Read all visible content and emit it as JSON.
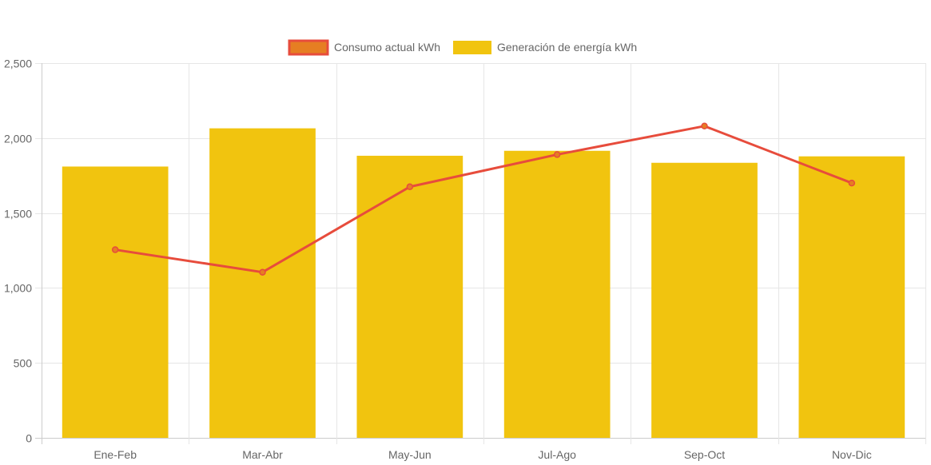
{
  "chart_data": {
    "type": "bar",
    "categories": [
      "Ene-Feb",
      "Mar-Abr",
      "May-Jun",
      "Jul-Ago",
      "Sep-Oct",
      "Nov-Dic"
    ],
    "series": [
      {
        "name": "Consumo actual kWh",
        "type": "line",
        "values": [
          1255,
          1105,
          1675,
          1890,
          2080,
          1700
        ],
        "color": "#e74c3c",
        "fill": "#e67e22"
      },
      {
        "name": "Generación de energía kWh",
        "type": "bar",
        "values": [
          1810,
          2065,
          1882,
          1915,
          1835,
          1878
        ],
        "color": "#f1c40f"
      }
    ],
    "y_ticks": [
      "0",
      "500",
      "1,000",
      "1,500",
      "2,000",
      "2,500"
    ],
    "ylim": [
      0,
      2500
    ],
    "grid": true,
    "legend_position": "top"
  }
}
